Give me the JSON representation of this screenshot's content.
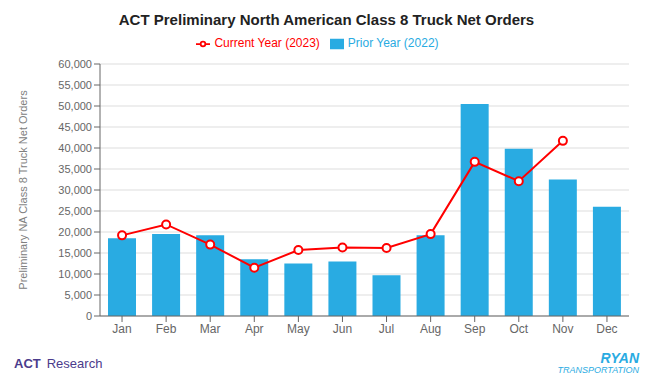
{
  "chart_data": {
    "type": "bar",
    "title": "ACT Preliminary North American Class 8 Truck Net Orders",
    "ylabel": "Preliminary NA Class 8 Truck Net Orders",
    "categories": [
      "Jan",
      "Feb",
      "Mar",
      "Apr",
      "May",
      "Jun",
      "Jul",
      "Aug",
      "Sep",
      "Oct",
      "Nov",
      "Dec"
    ],
    "series": [
      {
        "name": "Prior Year (2022)",
        "type": "bar",
        "color": "#29ABE2",
        "values": [
          18500,
          19500,
          19200,
          13500,
          12500,
          13000,
          9700,
          19200,
          50500,
          39800,
          32500,
          26000
        ]
      },
      {
        "name": "Current Year (2023)",
        "type": "line",
        "color": "#FF0000",
        "marker": "circle",
        "values": [
          19200,
          21800,
          17000,
          11500,
          15700,
          16300,
          16200,
          19500,
          36700,
          32100,
          41700,
          null
        ]
      }
    ],
    "ylim": [
      0,
      60000
    ],
    "yticks": [
      0,
      {
        "value": 5000,
        "label": "5,000"
      },
      {
        "value": 10000,
        "label": "10,000"
      },
      {
        "value": 15000,
        "label": "15,000"
      },
      {
        "value": 20000,
        "label": "20,000"
      },
      {
        "value": 25000,
        "label": "25,000"
      },
      {
        "value": 30000,
        "label": "30,000"
      },
      {
        "value": 35000,
        "label": "35,000"
      },
      {
        "value": 40000,
        "label": "40,000"
      },
      {
        "value": 45000,
        "label": "45,000"
      },
      {
        "value": 50000,
        "label": "50,000"
      },
      {
        "value": 55000,
        "label": "55,000"
      },
      {
        "value": 60000,
        "label": "60,000"
      }
    ],
    "grid": true,
    "legend": "top",
    "annotations": [
      "ACT",
      "Research",
      "RYAN",
      "TRANSPORTATION"
    ]
  }
}
